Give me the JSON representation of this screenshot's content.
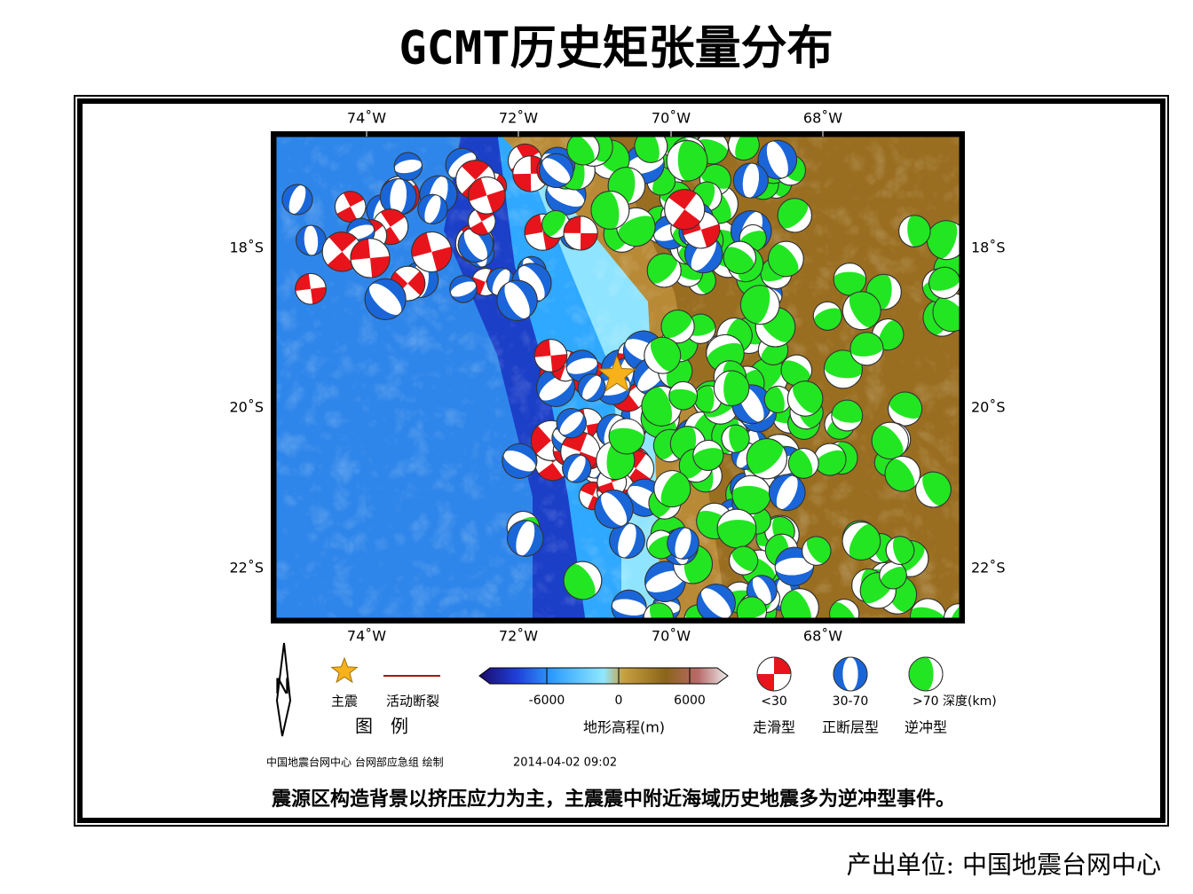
{
  "title": "GCMT历史矩张量分布",
  "map": {
    "lon_labels": [
      "74˚W",
      "72˚W",
      "70˚W",
      "68˚W"
    ],
    "lat_labels": [
      "18˚S",
      "20˚S",
      "22˚S"
    ]
  },
  "legend": {
    "north": "N",
    "main_shock": "主震",
    "fault": "活动断裂",
    "title": "图　例",
    "colorbar_ticks": [
      -6000,
      0,
      6000
    ],
    "colorbar_label": "地形高程(m)",
    "depths": [
      "<30",
      "30-70",
      ">70 深度(km)"
    ],
    "types": [
      "走滑型",
      "正断层型",
      "逆冲型"
    ]
  },
  "credit": "中国地震台网中心 台网部应急组 绘制",
  "timestamp": "2014-04-02 09:02",
  "caption": "震源区构造背景以挤压应力为主，主震震中附近海域历史地震多为逆冲型事件。",
  "footer": "产出单位: 中国地震台网中心"
}
